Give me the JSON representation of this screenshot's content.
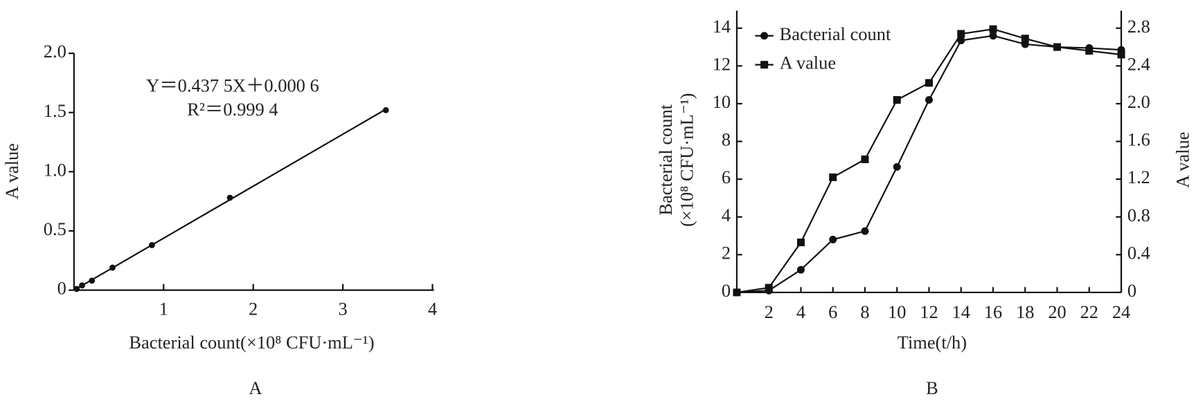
{
  "chart_data": [
    {
      "type": "scatter",
      "panel": "A",
      "equation": "Y＝0.437 5X＋0.000 6",
      "r_squared": "R²＝0.999 4",
      "xlabel": "Bacterial count(×10⁸ CFU·mL⁻¹)",
      "ylabel": "A value",
      "x": [
        0.03,
        0.09,
        0.2,
        0.43,
        0.87,
        1.74,
        3.48
      ],
      "values": [
        0.01,
        0.04,
        0.08,
        0.19,
        0.38,
        0.78,
        1.52
      ],
      "color": "#111111",
      "trendline": true,
      "xlim": [
        0,
        4
      ],
      "xticks": [
        1,
        2,
        3,
        4
      ],
      "ylim": [
        0,
        2
      ],
      "yticks": [
        0,
        0.5,
        {
          "value": 1,
          "label": "1.0"
        },
        1.5,
        {
          "value": 2,
          "label": "2.0"
        }
      ]
    },
    {
      "type": "line",
      "panel": "B",
      "xlabel": "Time(t/h)",
      "ylabel": [
        "Bacterial count",
        "(×10⁸ CFU·mL⁻¹)"
      ],
      "y2label": "A value",
      "x": [
        0,
        2,
        4,
        6,
        8,
        10,
        12,
        14,
        16,
        18,
        20,
        22,
        24
      ],
      "series": [
        {
          "name": "Bacterial count",
          "color": "#111111",
          "marker": "circle",
          "values": [
            0,
            0.1,
            1.2,
            2.8,
            3.25,
            6.65,
            10.2,
            13.35,
            13.6,
            13.15,
            13.0,
            12.95,
            12.85
          ]
        },
        {
          "name": "A value",
          "color": "#111111",
          "marker": "square",
          "axis": "y2",
          "values": [
            0,
            0.05,
            0.53,
            1.22,
            1.41,
            2.04,
            2.22,
            2.74,
            2.79,
            2.69,
            2.6,
            2.56,
            2.52
          ]
        }
      ],
      "legend": "upper-left",
      "xlim": [
        0,
        24
      ],
      "xticks": [
        2,
        4,
        6,
        8,
        10,
        12,
        14,
        16,
        18,
        20,
        22,
        24
      ],
      "ylim": [
        0,
        14
      ],
      "yticks": [
        0,
        2,
        4,
        6,
        8,
        10,
        12,
        14
      ],
      "y2lim": [
        0,
        2.8
      ],
      "y2ticks": [
        0,
        0.4,
        0.8,
        1.2,
        1.6,
        {
          "value": 2,
          "label": "2.0"
        },
        2.4,
        2.8
      ]
    }
  ]
}
